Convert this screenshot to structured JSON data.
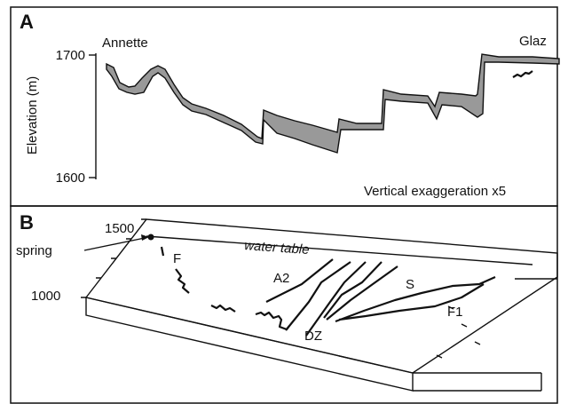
{
  "panel_a": {
    "label": "A",
    "start_site": "Annette",
    "end_site": "Glaz",
    "y_axis_label": "Elevation (m)",
    "y_ticks": [
      1700,
      1600
    ],
    "note": "Vertical exaggeration x5"
  },
  "panel_b": {
    "label": "B",
    "elevation_ticks": [
      1500,
      1000
    ],
    "spring_label": "spring",
    "water_table_label": "water table",
    "zone_labels": [
      "F",
      "A2",
      "DZ",
      "S",
      "F1"
    ]
  }
}
